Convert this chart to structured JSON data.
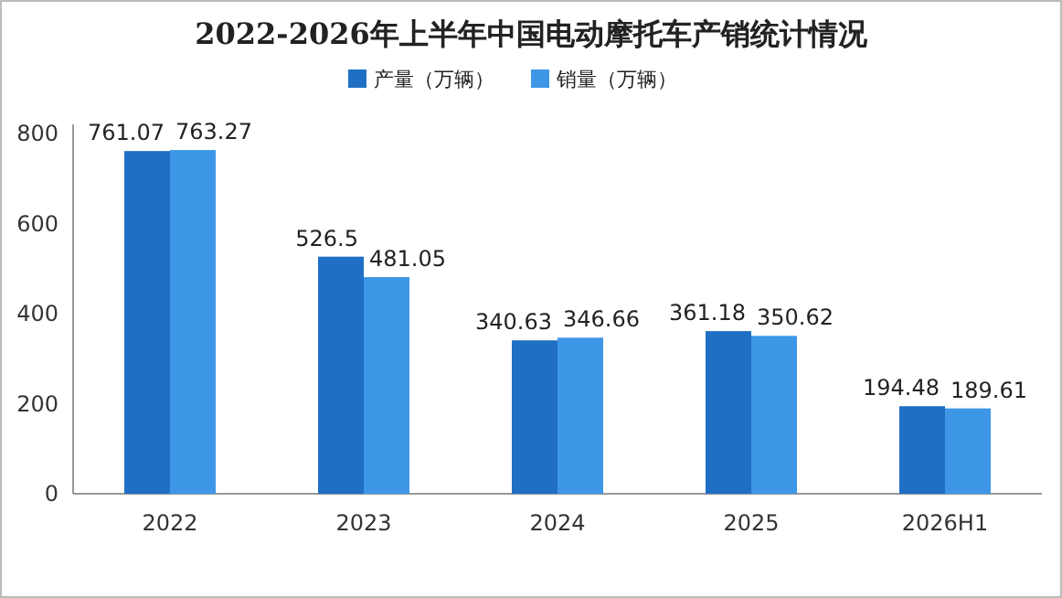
{
  "chart_data": {
    "type": "bar",
    "title": "2022-2026年上半年中国电动摩托车产销统计情况",
    "categories": [
      "2022",
      "2023",
      "2024",
      "2025",
      "2026H1"
    ],
    "series": [
      {
        "name": "产量（万辆）",
        "color": "#1f6fc5",
        "values": [
          761.07,
          526.5,
          340.63,
          361.18,
          194.48
        ]
      },
      {
        "name": "销量（万辆）",
        "color": "#3d97e6",
        "values": [
          763.27,
          481.05,
          346.66,
          350.62,
          189.61
        ]
      }
    ],
    "ylim": [
      0,
      800
    ],
    "yticks": [
      0,
      200,
      400,
      600,
      800
    ],
    "legend": "top",
    "data_labels": true
  }
}
